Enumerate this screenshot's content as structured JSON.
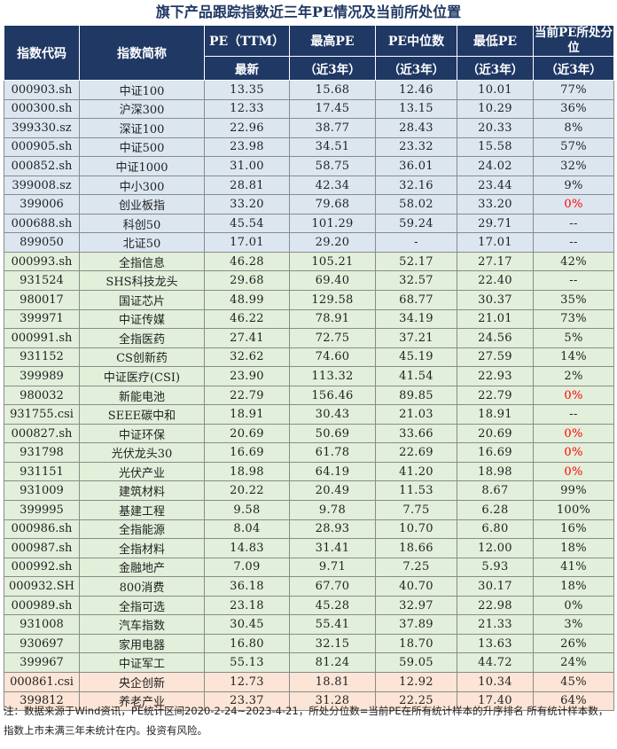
{
  "title": "旗下产品跟踪指数近三年PE情况及当前所处位置",
  "headers": {
    "code": "指数代码",
    "name": "指数简称",
    "pe_ttm": "PE（TTM）",
    "pe_ttm_sub": "最新",
    "max": "最高PE",
    "max_sub": "（近3年）",
    "median": "PE中位数",
    "median_sub": "（近3年）",
    "min": "最低PE",
    "min_sub": "（近3年）",
    "pct": "当前PE所处分位",
    "pct_sub": "（近3年）"
  },
  "rows": [
    {
      "code": "000903.sh",
      "name": "中证100",
      "pe": "13.35",
      "max": "15.68",
      "median": "12.46",
      "min": "10.01",
      "pct": "77%",
      "group": "blue",
      "red": false
    },
    {
      "code": "000300.sh",
      "name": "沪深300",
      "pe": "12.33",
      "max": "17.45",
      "median": "13.15",
      "min": "10.29",
      "pct": "36%",
      "group": "blue",
      "red": false
    },
    {
      "code": "399330.sz",
      "name": "深证100",
      "pe": "22.96",
      "max": "38.77",
      "median": "28.43",
      "min": "20.33",
      "pct": "8%",
      "group": "blue",
      "red": false
    },
    {
      "code": "000905.sh",
      "name": "中证500",
      "pe": "23.98",
      "max": "34.51",
      "median": "23.32",
      "min": "15.58",
      "pct": "57%",
      "group": "blue",
      "red": false
    },
    {
      "code": "000852.sh",
      "name": "中证1000",
      "pe": "31.00",
      "max": "58.75",
      "median": "36.01",
      "min": "24.02",
      "pct": "32%",
      "group": "blue",
      "red": false
    },
    {
      "code": "399008.sz",
      "name": "中小300",
      "pe": "28.81",
      "max": "42.34",
      "median": "32.16",
      "min": "23.44",
      "pct": "9%",
      "group": "blue",
      "red": false
    },
    {
      "code": "399006",
      "name": "创业板指",
      "pe": "33.20",
      "max": "79.68",
      "median": "58.02",
      "min": "33.20",
      "pct": "0%",
      "group": "blue",
      "red": true
    },
    {
      "code": "000688.sh",
      "name": "科创50",
      "pe": "45.54",
      "max": "101.29",
      "median": "59.24",
      "min": "29.71",
      "pct": "--",
      "group": "blue",
      "red": false
    },
    {
      "code": "899050",
      "name": "北证50",
      "pe": "17.01",
      "max": "29.20",
      "median": "-",
      "min": "17.01",
      "pct": "--",
      "group": "blue",
      "red": false
    },
    {
      "code": "000993.sh",
      "name": "全指信息",
      "pe": "46.28",
      "max": "105.21",
      "median": "52.17",
      "min": "27.17",
      "pct": "42%",
      "group": "green",
      "red": false
    },
    {
      "code": "931524",
      "name": "SHS科技龙头",
      "pe": "29.68",
      "max": "69.40",
      "median": "32.57",
      "min": "22.40",
      "pct": "--",
      "group": "green",
      "red": false
    },
    {
      "code": "980017",
      "name": "国证芯片",
      "pe": "48.99",
      "max": "129.58",
      "median": "68.77",
      "min": "30.37",
      "pct": "35%",
      "group": "green",
      "red": false
    },
    {
      "code": "399971",
      "name": "中证传媒",
      "pe": "46.22",
      "max": "78.91",
      "median": "34.19",
      "min": "21.01",
      "pct": "73%",
      "group": "green",
      "red": false
    },
    {
      "code": "000991.sh",
      "name": "全指医药",
      "pe": "27.41",
      "max": "72.75",
      "median": "37.21",
      "min": "24.56",
      "pct": "5%",
      "group": "green",
      "red": false
    },
    {
      "code": "931152",
      "name": "CS创新药",
      "pe": "32.62",
      "max": "74.60",
      "median": "45.19",
      "min": "27.59",
      "pct": "14%",
      "group": "green",
      "red": false
    },
    {
      "code": "399989",
      "name": "中证医疗(CSI)",
      "pe": "23.90",
      "max": "113.32",
      "median": "41.54",
      "min": "22.93",
      "pct": "2%",
      "group": "green",
      "red": false
    },
    {
      "code": "980032",
      "name": "新能电池",
      "pe": "22.79",
      "max": "156.46",
      "median": "89.85",
      "min": "22.79",
      "pct": "0%",
      "group": "green",
      "red": true
    },
    {
      "code": "931755.csi",
      "name": "SEEE碳中和",
      "pe": "18.91",
      "max": "30.43",
      "median": "21.03",
      "min": "18.91",
      "pct": "--",
      "group": "green",
      "red": false
    },
    {
      "code": "000827.sh",
      "name": "中证环保",
      "pe": "20.69",
      "max": "50.69",
      "median": "33.66",
      "min": "20.69",
      "pct": "0%",
      "group": "green",
      "red": true
    },
    {
      "code": "931798",
      "name": "光伏龙头30",
      "pe": "16.69",
      "max": "61.78",
      "median": "22.69",
      "min": "16.69",
      "pct": "0%",
      "group": "green",
      "red": true
    },
    {
      "code": "931151",
      "name": "光伏产业",
      "pe": "18.98",
      "max": "64.19",
      "median": "41.20",
      "min": "18.98",
      "pct": "0%",
      "group": "green",
      "red": true
    },
    {
      "code": "931009",
      "name": "建筑材料",
      "pe": "20.22",
      "max": "20.49",
      "median": "11.53",
      "min": "8.67",
      "pct": "99%",
      "group": "green",
      "red": false
    },
    {
      "code": "399995",
      "name": "基建工程",
      "pe": "9.58",
      "max": "9.78",
      "median": "7.75",
      "min": "6.28",
      "pct": "100%",
      "group": "green",
      "red": false
    },
    {
      "code": "000986.sh",
      "name": "全指能源",
      "pe": "8.04",
      "max": "28.93",
      "median": "10.70",
      "min": "6.80",
      "pct": "16%",
      "group": "green",
      "red": false
    },
    {
      "code": "000987.sh",
      "name": "全指材料",
      "pe": "14.83",
      "max": "31.41",
      "median": "18.66",
      "min": "12.00",
      "pct": "18%",
      "group": "green",
      "red": false
    },
    {
      "code": "000992.sh",
      "name": "金融地产",
      "pe": "7.09",
      "max": "9.71",
      "median": "7.25",
      "min": "5.93",
      "pct": "41%",
      "group": "green",
      "red": false
    },
    {
      "code": "000932.SH",
      "name": "800消费",
      "pe": "36.18",
      "max": "67.70",
      "median": "40.70",
      "min": "30.17",
      "pct": "18%",
      "group": "green",
      "red": false
    },
    {
      "code": "000989.sh",
      "name": "全指可选",
      "pe": "23.18",
      "max": "45.28",
      "median": "32.97",
      "min": "22.98",
      "pct": "0%",
      "group": "green",
      "red": false
    },
    {
      "code": "931008",
      "name": "汽车指数",
      "pe": "30.45",
      "max": "55.41",
      "median": "37.89",
      "min": "21.33",
      "pct": "3%",
      "group": "green",
      "red": false
    },
    {
      "code": "930697",
      "name": "家用电器",
      "pe": "16.80",
      "max": "32.15",
      "median": "18.70",
      "min": "13.63",
      "pct": "26%",
      "group": "green",
      "red": false
    },
    {
      "code": "399967",
      "name": "中证军工",
      "pe": "55.13",
      "max": "81.24",
      "median": "59.05",
      "min": "44.72",
      "pct": "24%",
      "group": "green",
      "red": false
    },
    {
      "code": "000861.csi",
      "name": "央企创新",
      "pe": "12.73",
      "max": "18.81",
      "median": "12.92",
      "min": "10.34",
      "pct": "45%",
      "group": "red",
      "red": false
    },
    {
      "code": "399812",
      "name": "养老产业",
      "pe": "23.37",
      "max": "31.28",
      "median": "22.25",
      "min": "17.40",
      "pct": "64%",
      "group": "red",
      "red": false
    }
  ],
  "colors": {
    "header_bg": "#1f3864",
    "group_blue": "#dce6f1",
    "group_green": "#e2efda",
    "group_red": "#fce4d6",
    "highlight": "#ff0000"
  },
  "note": "注：数据来源于Wind资讯，PE统计区间2020-2-24~2023-4-21，所处分位数=当前PE在所有统计样本的升序排名 所有统计样本数，指数上市未满三年未统计在内。投资有风险。"
}
